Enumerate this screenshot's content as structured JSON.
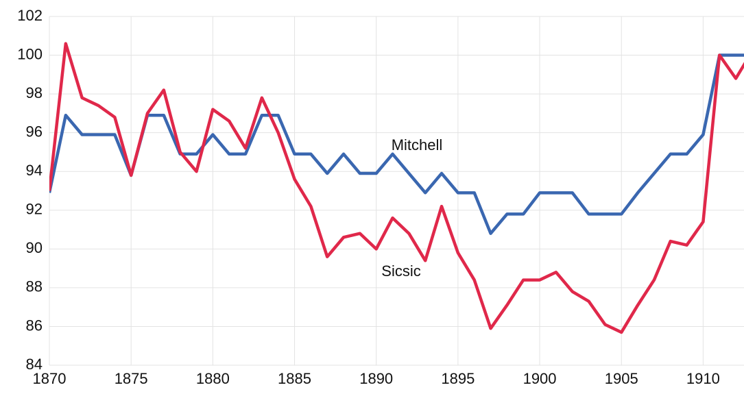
{
  "chart_data": {
    "type": "line",
    "x": [
      1870,
      1871,
      1872,
      1873,
      1874,
      1875,
      1876,
      1877,
      1878,
      1879,
      1880,
      1881,
      1882,
      1883,
      1884,
      1885,
      1886,
      1887,
      1888,
      1889,
      1890,
      1891,
      1892,
      1893,
      1894,
      1895,
      1896,
      1897,
      1898,
      1899,
      1900,
      1901,
      1902,
      1903,
      1904,
      1905,
      1906,
      1907,
      1908,
      1909,
      1910,
      1911,
      1912,
      1913
    ],
    "series": [
      {
        "name": "Mitchell",
        "color": "#3a67b0",
        "values": [
          92.9,
          96.9,
          95.9,
          95.9,
          95.9,
          93.8,
          96.9,
          96.9,
          94.9,
          94.9,
          95.9,
          94.9,
          94.9,
          96.9,
          96.9,
          94.9,
          94.9,
          93.9,
          94.9,
          93.9,
          93.9,
          94.9,
          93.9,
          92.9,
          93.9,
          92.9,
          92.9,
          90.8,
          91.8,
          91.8,
          92.9,
          92.9,
          92.9,
          91.8,
          91.8,
          91.8,
          92.9,
          93.9,
          94.9,
          94.9,
          95.9,
          100,
          100,
          100
        ]
      },
      {
        "name": "Sicsic",
        "color": "#e0284a",
        "values": [
          93,
          100.6,
          97.8,
          97.4,
          96.8,
          93.8,
          97,
          98.2,
          95,
          94,
          97.2,
          96.6,
          95.2,
          97.8,
          96,
          93.6,
          92.2,
          89.6,
          90.6,
          90.8,
          90,
          91.6,
          90.8,
          89.4,
          92.2,
          89.8,
          88.4,
          85.9,
          87.1,
          88.4,
          88.4,
          88.8,
          87.8,
          87.3,
          86.1,
          85.7,
          87.1,
          88.4,
          90.4,
          90.2,
          91.4,
          100,
          98.8,
          100.2
        ]
      }
    ],
    "xlim": [
      1870,
      1912.5
    ],
    "xticks": [
      1870,
      1875,
      1880,
      1885,
      1890,
      1895,
      1900,
      1905,
      1910
    ],
    "ylim": [
      84,
      102
    ],
    "yticks": [
      84,
      86,
      88,
      90,
      92,
      94,
      96,
      98,
      100,
      102
    ],
    "grid": true
  }
}
